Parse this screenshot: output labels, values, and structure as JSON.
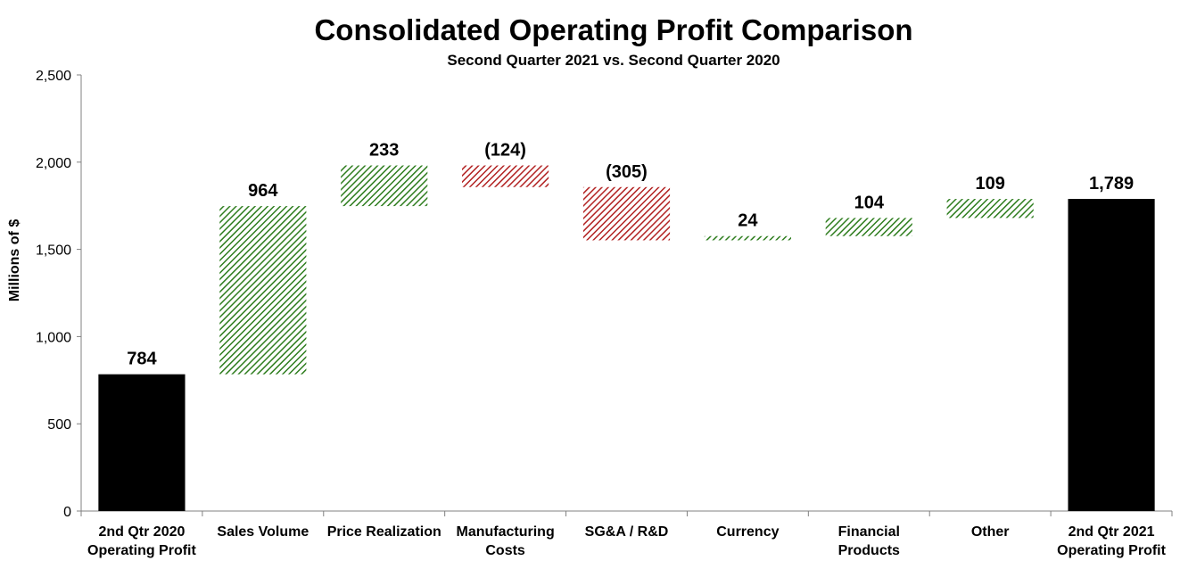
{
  "chart_data": {
    "type": "bar",
    "subtype": "waterfall",
    "title": "Consolidated Operating Profit Comparison",
    "subtitle": "Second Quarter 2021 vs. Second Quarter 2020",
    "ylabel": "Millions of $",
    "xlabel": "",
    "ylim": [
      0,
      2500
    ],
    "yticks": [
      0,
      500,
      1000,
      1500,
      2000,
      2500
    ],
    "ytick_labels": [
      "0",
      "500",
      "1,000",
      "1,500",
      "2,000",
      "2,500"
    ],
    "grid": false,
    "categories": [
      [
        "2nd Qtr 2020",
        "Operating Profit"
      ],
      [
        "Sales Volume"
      ],
      [
        "Price Realization"
      ],
      [
        "Manufacturing",
        "Costs"
      ],
      [
        "SG&A / R&D"
      ],
      [
        "Currency"
      ],
      [
        "Financial",
        "Products"
      ],
      [
        "Other"
      ],
      [
        "2nd Qtr 2021",
        "Operating Profit"
      ]
    ],
    "values": [
      784,
      964,
      233,
      -124,
      -305,
      24,
      104,
      109,
      1789
    ],
    "kinds": [
      "total",
      "delta",
      "delta",
      "delta",
      "delta",
      "delta",
      "delta",
      "delta",
      "total"
    ],
    "data_labels": [
      "784",
      "964",
      "233",
      "(124)",
      "(305)",
      "24",
      "104",
      "109",
      "1,789"
    ],
    "colors": {
      "total": "#000000",
      "increase": "#2e7d1e",
      "decrease": "#b22222"
    }
  }
}
